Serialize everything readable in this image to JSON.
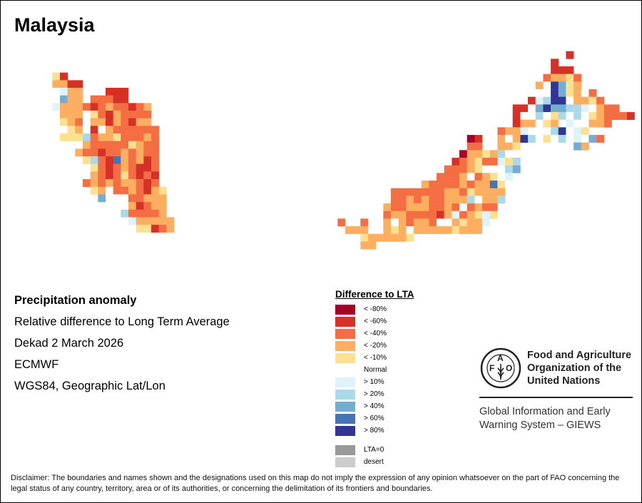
{
  "title": "Malaysia",
  "info": {
    "heading": "Precipitation anomaly",
    "subtitle": "Relative difference to Long Term Average",
    "period": "Dekad 2 March 2026",
    "source": "ECMWF",
    "projection": "WGS84, Geographic Lat/Lon"
  },
  "legend": {
    "title": "Difference to LTA",
    "items": [
      {
        "code": "a",
        "label": "< -80%",
        "color": "#a50026"
      },
      {
        "code": "b",
        "label": "< -60%",
        "color": "#d73027"
      },
      {
        "code": "c",
        "label": "< -40%",
        "color": "#f46d43"
      },
      {
        "code": "d",
        "label": "< -20%",
        "color": "#fdae61"
      },
      {
        "code": "e",
        "label": "< -10%",
        "color": "#fee090"
      },
      {
        "code": "n",
        "label": "Normal",
        "color": "#ffffff"
      },
      {
        "code": "f",
        "label": "> 10%",
        "color": "#e0f3f8"
      },
      {
        "code": "g",
        "label": "> 20%",
        "color": "#abd9e9"
      },
      {
        "code": "h",
        "label": "> 40%",
        "color": "#74add1"
      },
      {
        "code": "i",
        "label": "> 60%",
        "color": "#4575b4"
      },
      {
        "code": "j",
        "label": "> 80%",
        "color": "#313695"
      },
      {
        "code": "z",
        "label": "LTA=0",
        "color": "#999999"
      },
      {
        "code": "y",
        "label": "desert",
        "color": "#cccccc"
      }
    ]
  },
  "logo": {
    "org_line1": "Food and Agriculture",
    "org_line2": "Organization of the",
    "org_line3": "United Nations",
    "system_line1": "Global Information and Early",
    "system_line2": "Warning System – GIEWS",
    "emblem_letters": "FAO FIAT PANIS"
  },
  "disclaimer": "Disclaimer: The boundaries and names shown and the designations used on this map do not imply the expression of any opinion whatsoever on the part of FAO concerning the legal status of any country, territory, area or of its authorities, or concerning the delimitation of its frontiers and boundaries.",
  "grid": {
    "peninsular": [
      [
        0,
        "eb"
      ],
      [
        0,
        "ddbb"
      ],
      [
        0,
        "nfdd...bbb"
      ],
      [
        0,
        "nhdd.cccbb"
      ],
      [
        0,
        "fdddcbcdccbcd"
      ],
      [
        1,
        "dddnecbdcccc"
      ],
      [
        1,
        "edcnddbdcbdd"
      ],
      [
        1,
        "nednbndcccccc"
      ],
      [
        1,
        "eeegcddecccdc"
      ],
      [
        2,
        "nndcccccedcc"
      ],
      [
        3,
        "dccbccdcdcc"
      ],
      [
        4,
        "egcbidcdbc"
      ],
      [
        5,
        "ecbcdcbbc"
      ],
      [
        5,
        "dcbcecbcb"
      ],
      [
        4,
        "cdcdcddcbc"
      ],
      [
        5,
        "ednccdcbde"
      ],
      [
        6,
        "hnnnccddd"
      ],
      [
        9,
        "ndbcdd"
      ],
      [
        9,
        "gccccd"
      ],
      [
        10,
        "fddddd"
      ],
      [
        11,
        "eebcd"
      ]
    ],
    "borneo": [
      [
        30,
        "b"
      ],
      [
        28,
        "b"
      ],
      [
        28,
        "bbb"
      ],
      [
        27,
        "cddec"
      ],
      [
        26,
        "dnjhed"
      ],
      [
        26,
        "nnjhednc"
      ],
      [
        25,
        "bfgjjnddec"
      ],
      [
        23,
        "bbnhjhhggfndcc"
      ],
      [
        23,
        "bnngnegngnedcccb"
      ],
      [
        23,
        "bddnednfnnddc"
      ],
      [
        21,
        "cddfnnngjnfen"
      ],
      [
        17,
        "ab..dndjgnengnfnhc"
      ],
      [
        17,
        "cc..dde.......hd"
      ],
      [
        16,
        "addedgnn"
      ],
      [
        15,
        "bcdeccfeg"
      ],
      [
        14,
        "cccdennngh"
      ],
      [
        13,
        "cccdncdenf"
      ],
      [
        11,
        "dccccdcddien"
      ],
      [
        7,
        "cccccccddcedddd"
      ],
      [
        7,
        "ccdcdccdddgnddg"
      ],
      [
        6,
        "dccdddccdcncdcc"
      ],
      [
        6,
        "cddccccbdfcdefe"
      ],
      [
        0,
        "c..c..dndcddcnndeddf"
      ],
      [
        1,
        "ddd..dedndddddedddn"
      ],
      [
        3,
        "eddddde"
      ],
      [
        3,
        "dd"
      ]
    ]
  }
}
